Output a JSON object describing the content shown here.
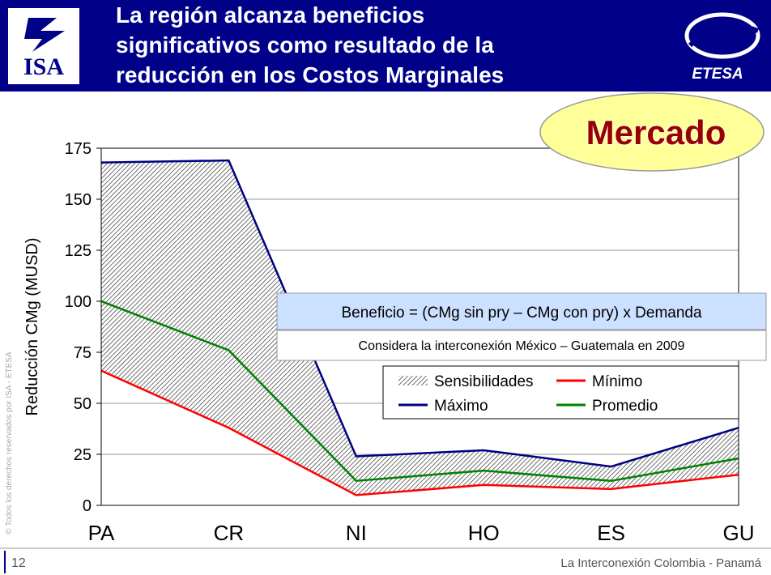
{
  "header": {
    "title_lines": [
      "La región alcanza beneficios",
      "significativos como resultado de la",
      "reducción en los Costos Marginales"
    ],
    "logo_left": "ISA",
    "logo_right": "ETESA"
  },
  "badge": "Mercado",
  "notes": [
    "Beneficio = (CMg sin pry – CMg  con pry) x Demanda",
    "Considera la interconexión México – Guatemala en 2009"
  ],
  "footer": {
    "page": "12",
    "text": "La Interconexión Colombia - Panamá",
    "copyright": "© Todos los derechos reservados por ISA - ETESA"
  },
  "chart_data": {
    "type": "line",
    "y_label": "Reducción CMg (MUSD)",
    "categories": [
      "PA",
      "CR",
      "NI",
      "HO",
      "ES",
      "GU"
    ],
    "band_name": "Sensibilidades",
    "series": [
      {
        "name": "Mínimo",
        "color": "#ff0000",
        "values": [
          66,
          38,
          5,
          10,
          8,
          15
        ]
      },
      {
        "name": "Máximo",
        "color": "#000080",
        "values": [
          168,
          169,
          24,
          27,
          19,
          38
        ]
      },
      {
        "name": "Promedio",
        "color": "#008000",
        "values": [
          100,
          76,
          12,
          17,
          12,
          23
        ]
      }
    ],
    "ylim": [
      0,
      175
    ],
    "yticks": [
      0,
      25,
      50,
      75,
      100,
      125,
      150,
      175
    ],
    "grid": true
  }
}
